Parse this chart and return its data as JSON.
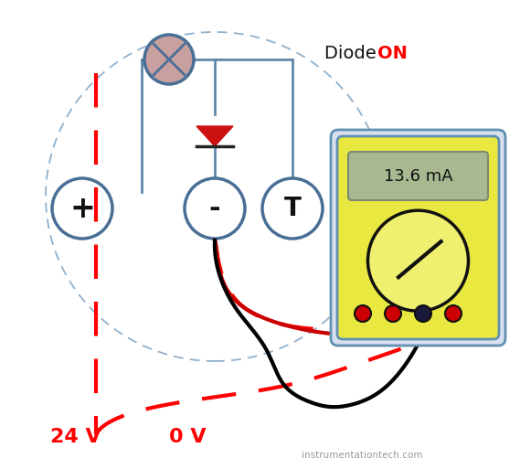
{
  "bg_color": "#ffffff",
  "diode_text": "Diode ",
  "diode_on": "ON",
  "label_24v": "24 V",
  "label_0v": "0 V",
  "watermark": "instrumentationtech.com",
  "display_value": "13.6 mA",
  "circle_color": "#4a6f96",
  "circle_face": "#ffffff",
  "lamp_face": "#c8a0a0",
  "dashed_red": "#ff0000",
  "diode_fill": "#cc1111",
  "meter_yellow": "#f0f070",
  "meter_yellow2": "#e8e840",
  "meter_border": "#6090b0",
  "meter_display_bg": "#a8b890",
  "wire_black": "#000000",
  "wire_red": "#cc0000",
  "blue_line": "#6088aa",
  "ellipse_color": "#90b0cc",
  "dot_red": "#cc0000",
  "dot_black": "#1a1a3a"
}
